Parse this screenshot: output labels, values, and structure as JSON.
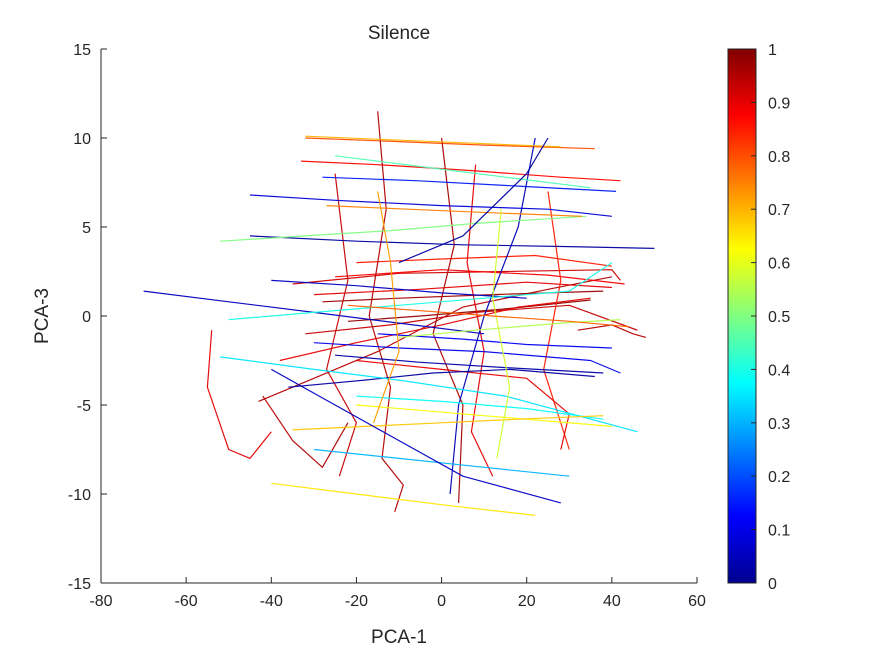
{
  "chart_data": {
    "type": "line",
    "title": "Silence",
    "xlabel": "PCA-1",
    "ylabel": "PCA-3",
    "xlim": [
      -80,
      60
    ],
    "ylim": [
      -15,
      15
    ],
    "xticks": [
      "-80",
      "-60",
      "-40",
      "-20",
      "0",
      "20",
      "40",
      "60"
    ],
    "yticks": [
      "-15",
      "-10",
      "-5",
      "0",
      "5",
      "10",
      "15"
    ],
    "grid": false,
    "colormap": "jet",
    "colorbar": {
      "range": [
        0,
        1
      ],
      "ticks": [
        "0",
        "0.1",
        "0.2",
        "0.3",
        "0.4",
        "0.5",
        "0.6",
        "0.7",
        "0.8",
        "0.9",
        "1"
      ],
      "colors": [
        "#00008f",
        "#0000ff",
        "#0080ff",
        "#00ffff",
        "#80ff80",
        "#ffff00",
        "#ff8000",
        "#ff0000",
        "#800000"
      ]
    },
    "series": [
      {
        "c": 0.95,
        "x": [
          -43,
          -30,
          -15,
          5,
          25,
          40
        ],
        "y": [
          -4.8,
          -3.5,
          -2.0,
          0.5,
          1.5,
          2.2
        ]
      },
      {
        "c": 0.92,
        "x": [
          -35,
          -10,
          15,
          40,
          42
        ],
        "y": [
          1.8,
          2.4,
          2.5,
          2.6,
          2.0
        ]
      },
      {
        "c": 0.9,
        "x": [
          -30,
          -5,
          20,
          40
        ],
        "y": [
          1.2,
          1.5,
          1.9,
          1.6
        ]
      },
      {
        "c": 0.88,
        "x": [
          -25,
          0,
          25,
          43
        ],
        "y": [
          2.2,
          2.6,
          2.3,
          1.8
        ]
      },
      {
        "c": 0.97,
        "x": [
          -28,
          -10,
          12,
          38
        ],
        "y": [
          0.8,
          1.0,
          1.2,
          1.4
        ]
      },
      {
        "c": 0.93,
        "x": [
          -32,
          -12,
          8,
          30,
          46
        ],
        "y": [
          -1.0,
          -0.5,
          0.2,
          0.6,
          -0.8
        ]
      },
      {
        "c": 0.85,
        "x": [
          -20,
          0,
          22,
          40
        ],
        "y": [
          3.0,
          3.2,
          3.4,
          2.8
        ]
      },
      {
        "c": 0.98,
        "x": [
          -22,
          -5,
          15,
          35
        ],
        "y": [
          -0.3,
          0.0,
          0.4,
          0.9
        ]
      },
      {
        "c": 0.9,
        "x": [
          -38,
          -20,
          0,
          18,
          35
        ],
        "y": [
          -2.5,
          -1.5,
          -0.5,
          0.5,
          1.0
        ]
      },
      {
        "c": 0.87,
        "x": [
          -33,
          -15,
          5,
          28,
          42
        ],
        "y": [
          8.7,
          8.5,
          8.2,
          7.8,
          7.6
        ]
      },
      {
        "c": 0.8,
        "x": [
          -32,
          -10,
          10,
          36
        ],
        "y": [
          10.0,
          9.8,
          9.6,
          9.4
        ]
      },
      {
        "c": 0.95,
        "x": [
          -15,
          -13,
          -17,
          -12,
          -14,
          -9,
          -11
        ],
        "y": [
          11.5,
          6.0,
          0.0,
          -4.0,
          -8.0,
          -9.5,
          -11.0
        ]
      },
      {
        "c": 0.93,
        "x": [
          -25,
          -22,
          -27,
          -20,
          -24
        ],
        "y": [
          8.0,
          2.0,
          -3.0,
          -6.0,
          -9.0
        ]
      },
      {
        "c": 0.96,
        "x": [
          0,
          3,
          -2,
          5,
          4
        ],
        "y": [
          10.0,
          4.0,
          -1.0,
          -5.0,
          -10.5
        ]
      },
      {
        "c": 0.9,
        "x": [
          8,
          6,
          10,
          7,
          12
        ],
        "y": [
          8.5,
          3.0,
          -2.0,
          -6.5,
          -9.0
        ]
      },
      {
        "c": 0.85,
        "x": [
          25,
          28,
          24,
          30
        ],
        "y": [
          7.0,
          2.0,
          -3.0,
          -7.5
        ]
      },
      {
        "c": 0.95,
        "x": [
          -42,
          -35,
          -28,
          -22
        ],
        "y": [
          -4.5,
          -7.0,
          -8.5,
          -6.0
        ]
      },
      {
        "c": 0.9,
        "x": [
          -54,
          -55,
          -50,
          -45,
          -40
        ],
        "y": [
          -0.8,
          -4.0,
          -7.5,
          -8.0,
          -6.5
        ]
      },
      {
        "c": 0.94,
        "x": [
          32,
          40,
          45,
          48
        ],
        "y": [
          -0.8,
          -0.5,
          -1.0,
          -1.2
        ]
      },
      {
        "c": 0.9,
        "x": [
          -20,
          0,
          20,
          30,
          28
        ],
        "y": [
          -2.5,
          -3.0,
          -3.5,
          -5.5,
          -7.5
        ]
      },
      {
        "c": 0.02,
        "x": [
          -45,
          -20,
          5,
          30,
          50
        ],
        "y": [
          4.5,
          4.2,
          4.0,
          3.9,
          3.8
        ]
      },
      {
        "c": 0.05,
        "x": [
          -70,
          -50,
          -30,
          -10,
          10
        ],
        "y": [
          1.4,
          0.8,
          0.2,
          -0.4,
          -1.0
        ]
      },
      {
        "c": 0.08,
        "x": [
          -45,
          -25,
          0,
          25,
          40
        ],
        "y": [
          6.8,
          6.5,
          6.2,
          6.0,
          5.6
        ]
      },
      {
        "c": 0.1,
        "x": [
          -30,
          -10,
          10,
          35,
          42
        ],
        "y": [
          -1.5,
          -1.8,
          -2.0,
          -2.5,
          -3.2
        ]
      },
      {
        "c": 0.03,
        "x": [
          -25,
          -5,
          15,
          38
        ],
        "y": [
          -2.2,
          -2.6,
          -2.9,
          -3.2
        ]
      },
      {
        "c": 0.12,
        "x": [
          -15,
          5,
          20,
          40
        ],
        "y": [
          -1.0,
          -1.3,
          -1.6,
          -1.8
        ]
      },
      {
        "c": 0.06,
        "x": [
          -40,
          -20,
          0,
          20
        ],
        "y": [
          2.0,
          1.7,
          1.3,
          1.0
        ]
      },
      {
        "c": 0.15,
        "x": [
          -28,
          -6,
          18,
          41
        ],
        "y": [
          7.8,
          7.6,
          7.3,
          7.0
        ]
      },
      {
        "c": 0.04,
        "x": [
          22,
          18,
          10,
          4,
          2
        ],
        "y": [
          10.0,
          5.0,
          0.0,
          -5.0,
          -10.0
        ]
      },
      {
        "c": 0.02,
        "x": [
          -36,
          -18,
          -2,
          16,
          36
        ],
        "y": [
          -4.0,
          -3.6,
          -3.2,
          -3.0,
          -3.4
        ]
      },
      {
        "c": 0.35,
        "x": [
          -52,
          -30,
          -10,
          15,
          46
        ],
        "y": [
          -2.3,
          -3.0,
          -3.6,
          -4.5,
          -6.5
        ]
      },
      {
        "c": 0.4,
        "x": [
          -50,
          -30,
          -10,
          10,
          30,
          40
        ],
        "y": [
          -0.2,
          0.2,
          0.6,
          1.0,
          1.4,
          3.0
        ]
      },
      {
        "c": 0.45,
        "x": [
          -25,
          -5,
          15,
          35
        ],
        "y": [
          9.0,
          8.4,
          7.8,
          7.2
        ]
      },
      {
        "c": 0.3,
        "x": [
          -30,
          -10,
          10,
          30
        ],
        "y": [
          -7.5,
          -8.0,
          -8.5,
          -9.0
        ]
      },
      {
        "c": 0.5,
        "x": [
          -52,
          -32,
          -12,
          8,
          34
        ],
        "y": [
          4.2,
          4.5,
          4.8,
          5.2,
          5.6
        ]
      },
      {
        "c": 0.38,
        "x": [
          -20,
          0,
          20,
          38
        ],
        "y": [
          -4.5,
          -4.8,
          -5.2,
          -5.8
        ]
      },
      {
        "c": 0.55,
        "x": [
          -10,
          8,
          28,
          42
        ],
        "y": [
          -1.2,
          -0.8,
          -0.4,
          -0.2
        ]
      },
      {
        "c": 0.65,
        "x": [
          -40,
          -20,
          0,
          22
        ],
        "y": [
          -9.4,
          -10.0,
          -10.6,
          -11.2
        ]
      },
      {
        "c": 0.7,
        "x": [
          -32,
          -12,
          8,
          28
        ],
        "y": [
          10.1,
          9.9,
          9.7,
          9.5
        ]
      },
      {
        "c": 0.62,
        "x": [
          -20,
          -5,
          10,
          25,
          40
        ],
        "y": [
          -5.0,
          -5.3,
          -5.6,
          -5.9,
          -6.2
        ]
      },
      {
        "c": 0.75,
        "x": [
          -27,
          -8,
          12,
          33
        ],
        "y": [
          6.2,
          6.0,
          5.8,
          5.6
        ]
      },
      {
        "c": 0.68,
        "x": [
          -35,
          -18,
          0,
          18,
          38
        ],
        "y": [
          -6.4,
          -6.2,
          -6.0,
          -5.8,
          -5.6
        ]
      },
      {
        "c": 0.72,
        "x": [
          -15,
          -12,
          -10,
          -16
        ],
        "y": [
          7.0,
          3.0,
          -2.0,
          -6.0
        ]
      },
      {
        "c": 0.58,
        "x": [
          14,
          12,
          16,
          13
        ],
        "y": [
          6.0,
          1.0,
          -4.0,
          -8.0
        ]
      },
      {
        "c": 0.78,
        "x": [
          -22,
          -5,
          12,
          30,
          44
        ],
        "y": [
          0.6,
          0.3,
          0.0,
          -0.3,
          -0.6
        ]
      },
      {
        "c": 0.02,
        "x": [
          -10,
          5,
          20,
          25
        ],
        "y": [
          3.0,
          4.5,
          8.0,
          10.0
        ]
      },
      {
        "c": 0.06,
        "x": [
          -40,
          -25,
          -10,
          5,
          28
        ],
        "y": [
          -3.0,
          -5.0,
          -7.0,
          -9.0,
          -10.5
        ]
      }
    ]
  }
}
